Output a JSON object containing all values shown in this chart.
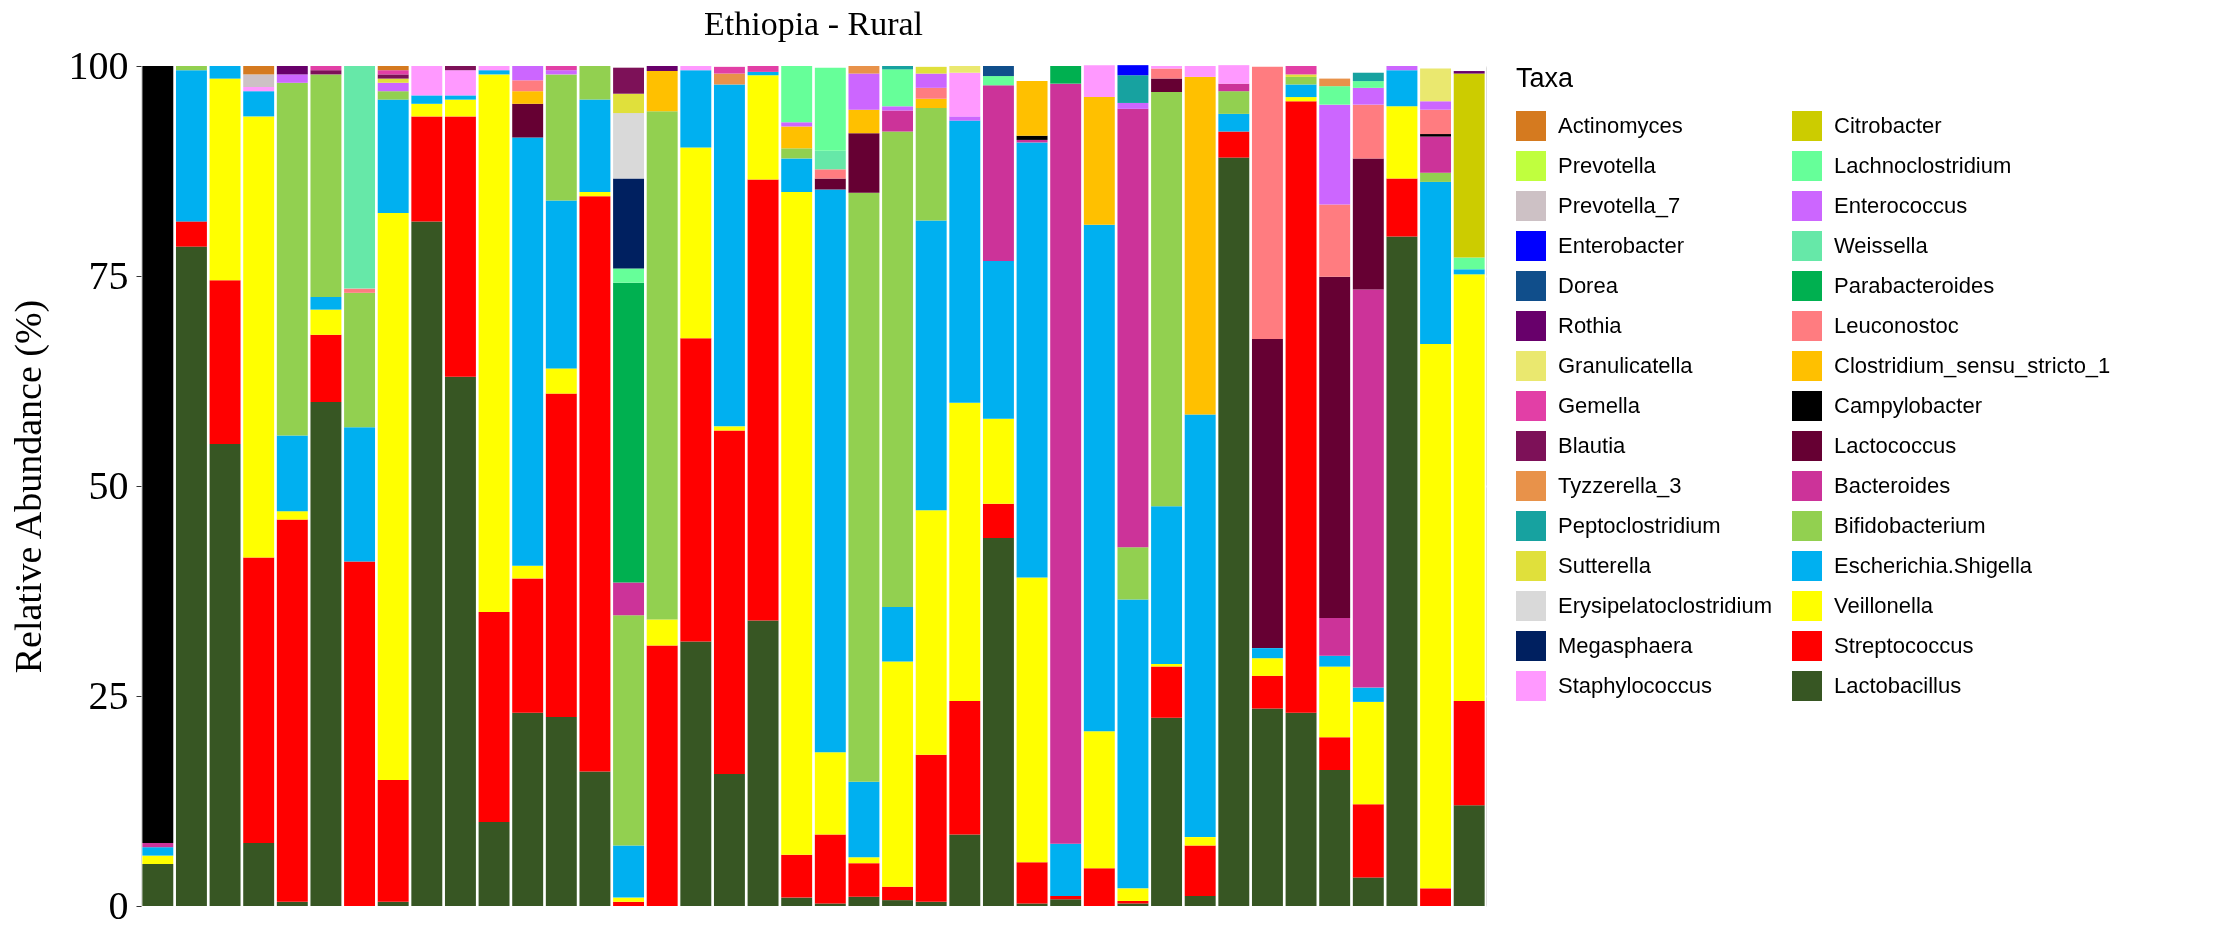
{
  "chart_data": {
    "type": "bar",
    "stacked": true,
    "title": "Ethiopia - Rural",
    "ylabel": "Relative Abundance (%)",
    "legend_title": "Taxa",
    "legend": "right",
    "grid": true,
    "tick_labels": "y",
    "ylim": [
      0,
      100
    ],
    "yticks": [
      0,
      25,
      50,
      75,
      100
    ],
    "categories": [
      null,
      null,
      null,
      null,
      null,
      null,
      null,
      null,
      null,
      null,
      null,
      null,
      null,
      null,
      null,
      null,
      null,
      null,
      null,
      null,
      null,
      null,
      null,
      null,
      null,
      null,
      null,
      null,
      null,
      null,
      null,
      null,
      null,
      null,
      null,
      null,
      null,
      null,
      null,
      null
    ],
    "series": [
      {
        "name": "Lactobacillus",
        "color": "#375623",
        "values": [
          5,
          78.5,
          55,
          7.5,
          0.5,
          60,
          null,
          0.5,
          81.5,
          63,
          10,
          23,
          22.5,
          16,
          null,
          null,
          31.5,
          15.7,
          34,
          1,
          0.3,
          1.1,
          0.7,
          0.5,
          8.5,
          43.8,
          0.3,
          0.8,
          null,
          0.3,
          22.4,
          1.2,
          89.1,
          23.5,
          23,
          16.2,
          3.4,
          79.7,
          null,
          12
        ]
      },
      {
        "name": "Streptococcus",
        "color": "#ff0000",
        "values": [
          null,
          3,
          19.5,
          34,
          45.5,
          8,
          41,
          14.5,
          12.5,
          31,
          25,
          16,
          38.5,
          68.5,
          0.5,
          31,
          36.1,
          40.9,
          52.5,
          5.1,
          8.2,
          4,
          1.6,
          17.5,
          15.9,
          4.1,
          4.9,
          0.4,
          4.5,
          0.3,
          6.1,
          6,
          3.1,
          3.9,
          72.8,
          3.9,
          8.7,
          6.9,
          2.1,
          12.4
        ]
      },
      {
        "name": "Veillonella",
        "color": "#ffff00",
        "values": [
          1,
          null,
          24,
          52.5,
          1,
          3,
          null,
          67.5,
          1.5,
          2,
          64,
          1.5,
          3,
          0.5,
          0.5,
          3.1,
          22.7,
          0.5,
          12.4,
          78.9,
          9.8,
          0.7,
          26.8,
          29.1,
          35.5,
          10.1,
          33.9,
          null,
          16.3,
          1.5,
          0.3,
          1,
          null,
          2.1,
          0.5,
          8.4,
          12.2,
          8.6,
          64.8,
          50.8
        ]
      },
      {
        "name": "Escherichia.Shigella",
        "color": "#00b0f0",
        "values": [
          1,
          18,
          1.5,
          3,
          9,
          1.5,
          16,
          13.5,
          1,
          0.5,
          0.5,
          51,
          20,
          11,
          6.2,
          null,
          9.2,
          40.7,
          0.4,
          4,
          67,
          9,
          6.5,
          34.5,
          33.6,
          18.8,
          51.8,
          6.2,
          60.3,
          34.4,
          18.8,
          50.3,
          2.1,
          1.2,
          1.5,
          1.3,
          1.7,
          4.3,
          19.3,
          0.6
        ]
      },
      {
        "name": "Bifidobacterium",
        "color": "#92d050",
        "values": [
          null,
          0.5,
          null,
          null,
          42,
          26.5,
          16,
          1,
          null,
          null,
          null,
          null,
          15,
          4,
          27.4,
          60.5,
          null,
          null,
          null,
          1.2,
          null,
          70.1,
          56.6,
          13.4,
          null,
          null,
          null,
          null,
          null,
          6.2,
          49.3,
          null,
          2.7,
          null,
          0.9,
          null,
          null,
          null,
          1.1,
          null
        ]
      },
      {
        "name": "Bacteroides",
        "color": "#cc3399",
        "values": [
          0.5,
          null,
          null,
          null,
          null,
          null,
          null,
          null,
          null,
          null,
          null,
          null,
          null,
          null,
          3.9,
          null,
          null,
          null,
          null,
          null,
          null,
          null,
          2.5,
          null,
          null,
          20.9,
          0.3,
          90.5,
          null,
          52.2,
          null,
          null,
          0.9,
          null,
          null,
          4.5,
          47.4,
          null,
          4.3,
          null
        ]
      },
      {
        "name": "Lactococcus",
        "color": "#660033",
        "values": [
          null,
          null,
          null,
          null,
          null,
          null,
          null,
          null,
          null,
          null,
          null,
          4,
          null,
          null,
          null,
          null,
          null,
          null,
          null,
          null,
          1.3,
          7.1,
          null,
          null,
          null,
          null,
          null,
          null,
          null,
          null,
          1.6,
          null,
          null,
          36.8,
          null,
          40.6,
          15.6,
          null,
          null,
          null
        ]
      },
      {
        "name": "Campylobacter",
        "color": "#000000",
        "values": [
          92.5,
          null,
          null,
          null,
          null,
          null,
          null,
          null,
          null,
          null,
          null,
          null,
          null,
          null,
          null,
          null,
          null,
          null,
          null,
          null,
          null,
          null,
          null,
          null,
          null,
          null,
          0.5,
          null,
          null,
          null,
          null,
          null,
          null,
          null,
          null,
          null,
          null,
          null,
          0.3,
          null
        ]
      },
      {
        "name": "Clostridium_sensu_stricto_1",
        "color": "#ffc000",
        "values": [
          null,
          null,
          null,
          null,
          null,
          null,
          null,
          null,
          null,
          null,
          null,
          1.5,
          null,
          null,
          null,
          4.8,
          null,
          null,
          null,
          2.6,
          null,
          2.8,
          null,
          1.1,
          null,
          null,
          6.5,
          null,
          15.2,
          null,
          null,
          40.2,
          null,
          null,
          null,
          null,
          null,
          null,
          null,
          null
        ]
      },
      {
        "name": "Leuconostoc",
        "color": "#ff7c80",
        "values": [
          null,
          null,
          null,
          null,
          null,
          null,
          0.5,
          null,
          null,
          null,
          null,
          1.3,
          null,
          null,
          null,
          null,
          null,
          null,
          null,
          null,
          1.1,
          null,
          null,
          1.3,
          null,
          null,
          null,
          null,
          null,
          null,
          1.2,
          null,
          null,
          32.4,
          null,
          8.6,
          6.4,
          null,
          2.9,
          null
        ]
      },
      {
        "name": "Parabacteroides",
        "color": "#00b050",
        "values": [
          null,
          null,
          null,
          null,
          null,
          null,
          null,
          null,
          null,
          null,
          null,
          null,
          null,
          null,
          35.7,
          null,
          null,
          null,
          null,
          null,
          null,
          null,
          null,
          null,
          null,
          null,
          null,
          2.1,
          null,
          null,
          null,
          null,
          null,
          null,
          null,
          null,
          null,
          null,
          null,
          null
        ]
      },
      {
        "name": "Weissella",
        "color": "#66e8a8",
        "values": [
          null,
          null,
          null,
          null,
          null,
          null,
          26.5,
          null,
          null,
          null,
          null,
          null,
          null,
          null,
          null,
          null,
          null,
          null,
          null,
          null,
          2.2,
          null,
          null,
          null,
          null,
          null,
          null,
          null,
          null,
          null,
          null,
          null,
          null,
          null,
          null,
          null,
          null,
          null,
          null,
          null
        ]
      },
      {
        "name": "Enterococcus",
        "color": "#cc66ff",
        "values": [
          null,
          null,
          null,
          null,
          1,
          null,
          null,
          1,
          null,
          null,
          null,
          1.7,
          0.5,
          null,
          null,
          null,
          null,
          null,
          null,
          0.5,
          null,
          4.3,
          0.5,
          1.7,
          0.5,
          null,
          null,
          null,
          null,
          0.7,
          null,
          null,
          null,
          null,
          null,
          11.9,
          2,
          0.5,
          1,
          null
        ]
      },
      {
        "name": "Lachnoclostridium",
        "color": "#66ff99",
        "values": [
          null,
          null,
          null,
          null,
          null,
          null,
          null,
          null,
          null,
          null,
          null,
          null,
          null,
          null,
          1.7,
          null,
          null,
          null,
          null,
          6.7,
          9.9,
          null,
          4.4,
          null,
          null,
          1.1,
          null,
          null,
          null,
          null,
          null,
          null,
          null,
          null,
          null,
          2.2,
          0.8,
          null,
          null,
          1.4
        ]
      },
      {
        "name": "Citrobacter",
        "color": "#cccc00",
        "values": [
          null,
          null,
          null,
          null,
          null,
          null,
          null,
          null,
          null,
          null,
          null,
          null,
          null,
          null,
          null,
          null,
          null,
          null,
          null,
          null,
          null,
          null,
          null,
          null,
          null,
          null,
          null,
          null,
          null,
          null,
          null,
          null,
          null,
          null,
          null,
          null,
          null,
          null,
          null,
          21.9
        ]
      },
      {
        "name": "Staphylococcus",
        "color": "#ff99ff",
        "values": [
          null,
          null,
          null,
          0.5,
          null,
          null,
          null,
          null,
          3.5,
          3,
          0.5,
          null,
          null,
          null,
          null,
          null,
          0.5,
          null,
          null,
          null,
          null,
          null,
          null,
          null,
          5.2,
          null,
          null,
          null,
          3.8,
          null,
          0.3,
          1.3,
          2.2,
          null,
          null,
          null,
          null,
          null,
          null,
          null
        ]
      },
      {
        "name": "Megasphaera",
        "color": "#002060",
        "values": [
          null,
          null,
          null,
          null,
          null,
          null,
          null,
          null,
          null,
          null,
          null,
          null,
          null,
          null,
          10.7,
          null,
          null,
          null,
          null,
          null,
          null,
          null,
          null,
          null,
          null,
          null,
          null,
          null,
          null,
          null,
          null,
          null,
          null,
          null,
          null,
          null,
          null,
          null,
          null,
          null
        ]
      },
      {
        "name": "Erysipelatoclostridium",
        "color": "#d9d9d9",
        "values": [
          null,
          null,
          null,
          null,
          null,
          null,
          null,
          null,
          null,
          null,
          null,
          null,
          null,
          null,
          7.8,
          null,
          null,
          null,
          null,
          null,
          null,
          null,
          null,
          null,
          null,
          null,
          null,
          null,
          null,
          null,
          null,
          null,
          null,
          null,
          null,
          null,
          null,
          null,
          null,
          null
        ]
      },
      {
        "name": "Sutterella",
        "color": "#e0e03b",
        "values": [
          null,
          null,
          null,
          null,
          null,
          null,
          null,
          0.5,
          null,
          null,
          null,
          null,
          null,
          null,
          2.3,
          null,
          null,
          null,
          null,
          null,
          null,
          null,
          null,
          0.8,
          null,
          null,
          null,
          null,
          null,
          null,
          null,
          null,
          null,
          null,
          0.3,
          null,
          null,
          null,
          null,
          null
        ]
      },
      {
        "name": "Peptoclostridium",
        "color": "#17a2a0",
        "values": [
          null,
          null,
          null,
          null,
          null,
          null,
          null,
          null,
          null,
          null,
          null,
          null,
          null,
          null,
          null,
          null,
          null,
          null,
          null,
          null,
          null,
          null,
          0.4,
          null,
          null,
          null,
          null,
          null,
          null,
          3.3,
          null,
          null,
          null,
          null,
          null,
          null,
          1,
          null,
          null,
          null
        ]
      },
      {
        "name": "Tyzzerella_3",
        "color": "#e8924a",
        "values": [
          null,
          null,
          null,
          null,
          null,
          null,
          null,
          null,
          null,
          null,
          null,
          null,
          null,
          null,
          null,
          null,
          null,
          1.3,
          null,
          null,
          null,
          0.9,
          null,
          null,
          null,
          null,
          null,
          null,
          null,
          null,
          null,
          null,
          null,
          null,
          null,
          0.9,
          null,
          null,
          null,
          null
        ]
      },
      {
        "name": "Blautia",
        "color": "#7d1158",
        "values": [
          null,
          null,
          null,
          null,
          null,
          0.5,
          null,
          0.5,
          null,
          0.5,
          null,
          null,
          null,
          null,
          3.1,
          null,
          null,
          null,
          null,
          null,
          null,
          null,
          null,
          null,
          null,
          null,
          null,
          null,
          null,
          null,
          null,
          null,
          null,
          null,
          null,
          null,
          null,
          null,
          null,
          null
        ]
      },
      {
        "name": "Gemella",
        "color": "#e23fa6",
        "values": [
          null,
          null,
          null,
          null,
          null,
          0.5,
          null,
          0.5,
          null,
          null,
          null,
          null,
          0.5,
          null,
          null,
          null,
          null,
          0.8,
          0.7,
          null,
          null,
          null,
          null,
          null,
          null,
          null,
          null,
          null,
          null,
          null,
          null,
          null,
          null,
          null,
          1,
          null,
          null,
          null,
          null,
          null
        ]
      },
      {
        "name": "Granulicatella",
        "color": "#eae86f",
        "values": [
          null,
          null,
          null,
          null,
          null,
          null,
          null,
          null,
          null,
          null,
          null,
          null,
          null,
          null,
          null,
          null,
          null,
          null,
          null,
          null,
          null,
          null,
          null,
          null,
          0.8,
          null,
          null,
          null,
          null,
          null,
          null,
          null,
          null,
          null,
          null,
          null,
          null,
          null,
          3.9,
          null
        ]
      },
      {
        "name": "Rothia",
        "color": "#68006b",
        "values": [
          null,
          null,
          null,
          null,
          1,
          null,
          null,
          null,
          null,
          null,
          null,
          null,
          null,
          null,
          null,
          0.6,
          null,
          null,
          null,
          null,
          null,
          null,
          null,
          null,
          null,
          null,
          null,
          null,
          null,
          null,
          null,
          null,
          null,
          null,
          null,
          null,
          null,
          null,
          null,
          0.3
        ]
      },
      {
        "name": "Dorea",
        "color": "#104e8b",
        "values": [
          null,
          null,
          null,
          null,
          null,
          null,
          null,
          null,
          null,
          null,
          null,
          null,
          null,
          null,
          null,
          null,
          null,
          null,
          null,
          null,
          null,
          null,
          null,
          null,
          null,
          1.2,
          null,
          null,
          null,
          null,
          null,
          null,
          null,
          null,
          null,
          null,
          null,
          null,
          null,
          null
        ]
      },
      {
        "name": "Enterobacter",
        "color": "#0000ff",
        "values": [
          null,
          null,
          null,
          null,
          null,
          null,
          null,
          null,
          null,
          null,
          null,
          null,
          null,
          null,
          null,
          null,
          null,
          null,
          null,
          null,
          null,
          null,
          null,
          null,
          null,
          null,
          null,
          null,
          null,
          1.2,
          null,
          null,
          null,
          null,
          null,
          null,
          null,
          null,
          null,
          null
        ]
      },
      {
        "name": "Prevotella_7",
        "color": "#cdc1c5",
        "values": [
          null,
          null,
          null,
          1.5,
          null,
          null,
          null,
          null,
          null,
          null,
          null,
          null,
          null,
          null,
          null,
          null,
          null,
          null,
          null,
          null,
          null,
          null,
          null,
          null,
          null,
          null,
          null,
          null,
          null,
          null,
          null,
          null,
          null,
          null,
          null,
          null,
          null,
          null,
          null,
          null
        ]
      },
      {
        "name": "Prevotella",
        "color": "#c0ff3e",
        "values": [
          null,
          null,
          null,
          null,
          null,
          null,
          null,
          null,
          null,
          null,
          null,
          null,
          null,
          null,
          null,
          null,
          null,
          null,
          null,
          null,
          null,
          null,
          null,
          null,
          null,
          null,
          null,
          null,
          null,
          null,
          null,
          null,
          null,
          null,
          null,
          null,
          null,
          null,
          null,
          null
        ]
      },
      {
        "name": "Actinomyces",
        "color": "#d57a1f",
        "values": [
          null,
          null,
          null,
          1,
          null,
          null,
          null,
          0.5,
          null,
          null,
          null,
          null,
          null,
          null,
          null,
          null,
          null,
          null,
          null,
          null,
          null,
          null,
          null,
          null,
          null,
          null,
          null,
          null,
          null,
          null,
          null,
          null,
          null,
          null,
          null,
          null,
          null,
          null,
          null,
          null
        ]
      }
    ]
  }
}
